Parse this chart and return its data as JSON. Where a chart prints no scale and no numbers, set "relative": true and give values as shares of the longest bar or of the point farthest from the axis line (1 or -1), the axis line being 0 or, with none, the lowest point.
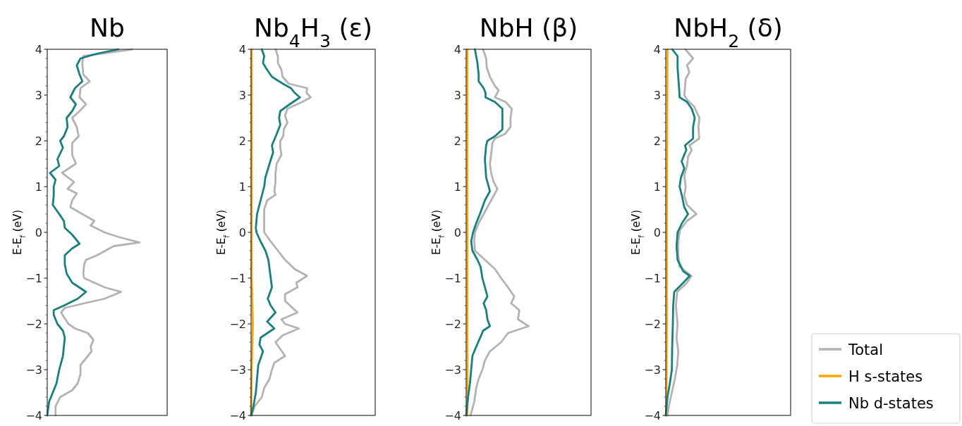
{
  "chart_data": [
    {
      "type": "line",
      "title": "Nb",
      "ylabel": "E-E$_{f}$ (eV)",
      "orientation": "horizontal",
      "relative": true,
      "tick_labels": "y",
      "ylim": [
        -4,
        4
      ],
      "yticks": [
        -4,
        -3,
        -2,
        -1,
        0,
        1,
        2,
        3,
        4,
        {
          "value": -3.8,
          "label": null
        },
        {
          "value": -3.6,
          "label": null
        },
        {
          "value": -3.4,
          "label": null
        },
        {
          "value": -3.2,
          "label": null
        },
        {
          "value": -2.8,
          "label": null
        },
        {
          "value": -2.6,
          "label": null
        },
        {
          "value": -2.4,
          "label": null
        },
        {
          "value": -2.2,
          "label": null
        },
        {
          "value": -1.8,
          "label": null
        },
        {
          "value": -1.6,
          "label": null
        },
        {
          "value": -1.4,
          "label": null
        },
        {
          "value": -1.2,
          "label": null
        },
        {
          "value": -0.8,
          "label": null
        },
        {
          "value": -0.6,
          "label": null
        },
        {
          "value": -0.4,
          "label": null
        },
        {
          "value": -0.2,
          "label": null
        },
        {
          "value": 0.2,
          "label": null
        },
        {
          "value": 0.4,
          "label": null
        },
        {
          "value": 0.6,
          "label": null
        },
        {
          "value": 0.8,
          "label": null
        },
        {
          "value": 1.2,
          "label": null
        },
        {
          "value": 1.4,
          "label": null
        },
        {
          "value": 1.6,
          "label": null
        },
        {
          "value": 1.8,
          "label": null
        },
        {
          "value": 2.2,
          "label": null
        },
        {
          "value": 2.4,
          "label": null
        },
        {
          "value": 2.6,
          "label": null
        },
        {
          "value": 2.8,
          "label": null
        },
        {
          "value": 3.2,
          "label": null
        },
        {
          "value": 3.4,
          "label": null
        },
        {
          "value": 3.6,
          "label": null
        },
        {
          "value": 3.8,
          "label": null
        }
      ],
      "series": [
        {
          "color": "#b3b3b3",
          "x": [
            4,
            3.85,
            3.7,
            3.45,
            3.3,
            3.15,
            2.95,
            2.8,
            2.65,
            2.5,
            2.3,
            2.1,
            1.95,
            1.7,
            1.5,
            1.3,
            1.1,
            0.95,
            0.85,
            0.7,
            0.55,
            0.4,
            0.25,
            0.15,
            0,
            -0.1,
            -0.22,
            -0.3,
            -0.5,
            -0.6,
            -0.7,
            -0.9,
            -1.0,
            -1.2,
            -1.3,
            -1.45,
            -1.55,
            -1.65,
            -1.75,
            -1.85,
            -2.0,
            -2.1,
            -2.2,
            -2.35,
            -2.5,
            -2.6,
            -2.8,
            -2.9,
            -3.1,
            -3.3,
            -3.45,
            -3.6,
            -3.8,
            -4
          ],
          "values": [
            0.92,
            0.39,
            0.38,
            0.39,
            0.46,
            0.36,
            0.35,
            0.42,
            0.35,
            0.27,
            0.32,
            0.34,
            0.27,
            0.27,
            0.31,
            0.16,
            0.29,
            0.22,
            0.32,
            0.27,
            0.25,
            0.38,
            0.51,
            0.47,
            0.62,
            0.77,
            1.0,
            0.72,
            0.54,
            0.42,
            0.4,
            0.39,
            0.4,
            0.62,
            0.8,
            0.62,
            0.4,
            0.19,
            0.15,
            0.18,
            0.23,
            0.3,
            0.44,
            0.5,
            0.47,
            0.48,
            0.4,
            0.36,
            0.36,
            0.33,
            0.27,
            0.14,
            0.09,
            0.09
          ]
        },
        {
          "color": "#1b7f7f",
          "x": [
            4,
            3.9,
            3.8,
            3.65,
            3.45,
            3.3,
            3.15,
            2.95,
            2.8,
            2.65,
            2.5,
            2.3,
            2.1,
            2.0,
            1.85,
            1.6,
            1.45,
            1.3,
            1.15,
            1.0,
            0.8,
            0.6,
            0.4,
            0.25,
            0.1,
            -0.05,
            -0.25,
            -0.35,
            -0.5,
            -0.7,
            -0.9,
            -1.1,
            -1.3,
            -1.45,
            -1.6,
            -1.7,
            -1.8,
            -2.0,
            -2.15,
            -2.3,
            -2.5,
            -2.7,
            -3.0,
            -3.3,
            -3.5,
            -3.7,
            -4
          ],
          "values": [
            0.77,
            0.53,
            0.36,
            0.32,
            0.35,
            0.38,
            0.3,
            0.25,
            0.31,
            0.27,
            0.21,
            0.22,
            0.18,
            0.14,
            0.17,
            0.11,
            0.13,
            0.03,
            0.09,
            0.07,
            0.07,
            0.06,
            0.13,
            0.18,
            0.19,
            0.27,
            0.35,
            0.27,
            0.19,
            0.19,
            0.21,
            0.27,
            0.42,
            0.33,
            0.18,
            0.07,
            0.07,
            0.11,
            0.17,
            0.19,
            0.18,
            0.17,
            0.13,
            0.1,
            0.06,
            0.02,
            0.0
          ]
        }
      ]
    },
    {
      "type": "line",
      "title": "Nb$_{4}$H$_{3}$ (ε)",
      "ylabel": "E-E$_{f}$ (eV)",
      "orientation": "horizontal",
      "relative": true,
      "tick_labels": "y",
      "ylim": [
        -4,
        4
      ],
      "yticks": [
        -4,
        -3,
        -2,
        -1,
        0,
        1,
        2,
        3,
        4,
        {
          "value": -3.8,
          "label": null
        },
        {
          "value": -3.6,
          "label": null
        },
        {
          "value": -3.4,
          "label": null
        },
        {
          "value": -3.2,
          "label": null
        },
        {
          "value": -2.8,
          "label": null
        },
        {
          "value": -2.6,
          "label": null
        },
        {
          "value": -2.4,
          "label": null
        },
        {
          "value": -2.2,
          "label": null
        },
        {
          "value": -1.8,
          "label": null
        },
        {
          "value": -1.6,
          "label": null
        },
        {
          "value": -1.4,
          "label": null
        },
        {
          "value": -1.2,
          "label": null
        },
        {
          "value": -0.8,
          "label": null
        },
        {
          "value": -0.6,
          "label": null
        },
        {
          "value": -0.4,
          "label": null
        },
        {
          "value": -0.2,
          "label": null
        },
        {
          "value": 0.2,
          "label": null
        },
        {
          "value": 0.4,
          "label": null
        },
        {
          "value": 0.6,
          "label": null
        },
        {
          "value": 0.8,
          "label": null
        },
        {
          "value": 1.2,
          "label": null
        },
        {
          "value": 1.4,
          "label": null
        },
        {
          "value": 1.6,
          "label": null
        },
        {
          "value": 1.8,
          "label": null
        },
        {
          "value": 2.2,
          "label": null
        },
        {
          "value": 2.4,
          "label": null
        },
        {
          "value": 2.6,
          "label": null
        },
        {
          "value": 2.8,
          "label": null
        },
        {
          "value": 3.2,
          "label": null
        },
        {
          "value": 3.4,
          "label": null
        },
        {
          "value": 3.6,
          "label": null
        },
        {
          "value": 3.8,
          "label": null
        }
      ],
      "series": [
        {
          "color": "#b3b3b3",
          "x": [
            4,
            3.85,
            3.7,
            3.55,
            3.4,
            3.25,
            3.15,
            3.05,
            2.95,
            2.85,
            2.7,
            2.55,
            2.4,
            2.25,
            2.1,
            2.0,
            1.85,
            1.7,
            1.5,
            1.3,
            1.1,
            0.9,
            0.82,
            0.7,
            0.5,
            0.2,
            0,
            -0.2,
            -0.4,
            -0.6,
            -0.8,
            -0.95,
            -1.1,
            -1.2,
            -1.35,
            -1.5,
            -1.75,
            -1.9,
            -2.0,
            -2.1,
            -2.25,
            -2.4,
            -2.55,
            -2.7,
            -2.85,
            -3.0,
            -3.2,
            -3.4,
            -3.6,
            -3.8,
            -4
          ],
          "values": [
            0.41,
            0.45,
            0.45,
            0.51,
            0.53,
            0.63,
            0.94,
            0.93,
            1.0,
            0.86,
            0.61,
            0.57,
            0.61,
            0.55,
            0.54,
            0.49,
            0.49,
            0.51,
            0.43,
            0.41,
            0.41,
            0.39,
            0.41,
            0.27,
            0.22,
            0.22,
            0.22,
            0.33,
            0.45,
            0.57,
            0.73,
            0.94,
            0.76,
            0.78,
            0.57,
            0.57,
            0.78,
            0.51,
            0.57,
            0.8,
            0.53,
            0.41,
            0.49,
            0.57,
            0.39,
            0.35,
            0.31,
            0.22,
            0.18,
            0.06,
            0.01
          ]
        },
        {
          "color": "#ffa500",
          "x": [
            4,
            3,
            2,
            1,
            0,
            -1,
            -2,
            -2.5,
            -3,
            -4
          ],
          "values": [
            0.01,
            0.01,
            0.01,
            0.01,
            0.01,
            0.01,
            0.03,
            0.02,
            0.01,
            0.0
          ]
        },
        {
          "color": "#1b7f7f",
          "x": [
            4,
            3.85,
            3.7,
            3.55,
            3.4,
            3.25,
            3.15,
            3.05,
            2.95,
            2.8,
            2.65,
            2.5,
            2.35,
            2.15,
            1.9,
            1.75,
            1.5,
            1.2,
            1.0,
            0.8,
            0.6,
            0.4,
            0.1,
            0,
            -0.2,
            -0.4,
            -0.6,
            -0.8,
            -1.0,
            -1.2,
            -1.45,
            -1.6,
            -1.75,
            -1.95,
            -2.1,
            -2.3,
            -2.45,
            -2.6,
            -2.75,
            -2.9,
            -3.2,
            -3.5,
            -3.8,
            -4
          ],
          "values": [
            0.18,
            0.22,
            0.2,
            0.27,
            0.35,
            0.53,
            0.67,
            0.73,
            0.82,
            0.65,
            0.49,
            0.47,
            0.49,
            0.43,
            0.35,
            0.37,
            0.31,
            0.24,
            0.22,
            0.18,
            0.14,
            0.1,
            0.08,
            0.09,
            0.16,
            0.24,
            0.29,
            0.31,
            0.33,
            0.35,
            0.28,
            0.33,
            0.41,
            0.27,
            0.39,
            0.16,
            0.14,
            0.2,
            0.16,
            0.12,
            0.1,
            0.08,
            0.04,
            0.0
          ]
        }
      ]
    },
    {
      "type": "line",
      "title": "NbH (β)",
      "ylabel": "E-E$_{f}$ (eV)",
      "orientation": "horizontal",
      "relative": true,
      "tick_labels": "y",
      "ylim": [
        -4,
        4
      ],
      "yticks": [
        -4,
        -3,
        -2,
        -1,
        0,
        1,
        2,
        3,
        4,
        {
          "value": -3.8,
          "label": null
        },
        {
          "value": -3.6,
          "label": null
        },
        {
          "value": -3.4,
          "label": null
        },
        {
          "value": -3.2,
          "label": null
        },
        {
          "value": -2.8,
          "label": null
        },
        {
          "value": -2.6,
          "label": null
        },
        {
          "value": -2.4,
          "label": null
        },
        {
          "value": -2.2,
          "label": null
        },
        {
          "value": -1.8,
          "label": null
        },
        {
          "value": -1.6,
          "label": null
        },
        {
          "value": -1.4,
          "label": null
        },
        {
          "value": -1.2,
          "label": null
        },
        {
          "value": -0.8,
          "label": null
        },
        {
          "value": -0.6,
          "label": null
        },
        {
          "value": -0.4,
          "label": null
        },
        {
          "value": -0.2,
          "label": null
        },
        {
          "value": 0.2,
          "label": null
        },
        {
          "value": 0.4,
          "label": null
        },
        {
          "value": 0.6,
          "label": null
        },
        {
          "value": 0.8,
          "label": null
        },
        {
          "value": 1.2,
          "label": null
        },
        {
          "value": 1.4,
          "label": null
        },
        {
          "value": 1.6,
          "label": null
        },
        {
          "value": 1.8,
          "label": null
        },
        {
          "value": 2.2,
          "label": null
        },
        {
          "value": 2.4,
          "label": null
        },
        {
          "value": 2.6,
          "label": null
        },
        {
          "value": 2.8,
          "label": null
        },
        {
          "value": 3.2,
          "label": null
        },
        {
          "value": 3.4,
          "label": null
        },
        {
          "value": 3.6,
          "label": null
        },
        {
          "value": 3.8,
          "label": null
        }
      ],
      "series": [
        {
          "color": "#b3b3b3",
          "x": [
            4,
            3.8,
            3.6,
            3.4,
            3.2,
            3.1,
            2.95,
            2.85,
            2.7,
            2.5,
            2.3,
            2.15,
            2.05,
            1.95,
            1.7,
            1.5,
            1.3,
            1.1,
            0.95,
            0.8,
            0.6,
            0.4,
            0.2,
            0,
            -0.2,
            -0.4,
            -0.55,
            -0.8,
            -1.0,
            -1.2,
            -1.4,
            -1.55,
            -1.7,
            -1.9,
            -2.05,
            -2.2,
            -2.4,
            -2.6,
            -2.8,
            -3.0,
            -3.2,
            -3.4,
            -3.7,
            -4
          ],
          "values": [
            0.27,
            0.32,
            0.33,
            0.38,
            0.46,
            0.52,
            0.46,
            0.63,
            0.73,
            0.71,
            0.71,
            0.62,
            0.46,
            0.42,
            0.4,
            0.38,
            0.4,
            0.44,
            0.5,
            0.44,
            0.36,
            0.28,
            0.2,
            0.14,
            0.13,
            0.14,
            0.26,
            0.46,
            0.56,
            0.67,
            0.77,
            0.72,
            0.85,
            0.83,
            1.0,
            0.67,
            0.56,
            0.38,
            0.3,
            0.26,
            0.2,
            0.16,
            0.13,
            0.07
          ]
        },
        {
          "color": "#ffa500",
          "x": [
            4,
            2,
            0,
            -2,
            -4
          ],
          "values": [
            0.02,
            0.02,
            0.02,
            0.02,
            0.02
          ]
        },
        {
          "color": "#1b7f7f",
          "x": [
            4,
            3.7,
            3.45,
            3.3,
            3.15,
            3.05,
            2.95,
            2.85,
            2.7,
            2.5,
            2.25,
            2.1,
            2.0,
            1.9,
            1.6,
            1.2,
            1.0,
            0.9,
            0.7,
            0.4,
            0.2,
            0,
            -0.2,
            -0.4,
            -0.6,
            -0.75,
            -1.0,
            -1.2,
            -1.4,
            -1.55,
            -1.7,
            -1.9,
            -2.05,
            -2.15,
            -2.25,
            -2.5,
            -2.7,
            -3.0,
            -3.3,
            -3.6,
            -4
          ],
          "values": [
            0.14,
            0.18,
            0.2,
            0.2,
            0.28,
            0.31,
            0.31,
            0.46,
            0.58,
            0.58,
            0.58,
            0.46,
            0.34,
            0.32,
            0.3,
            0.32,
            0.36,
            0.38,
            0.3,
            0.22,
            0.16,
            0.11,
            0.08,
            0.1,
            0.18,
            0.23,
            0.26,
            0.3,
            0.34,
            0.28,
            0.32,
            0.34,
            0.38,
            0.27,
            0.24,
            0.16,
            0.1,
            0.08,
            0.06,
            0.03,
            0.0
          ]
        }
      ]
    },
    {
      "type": "line",
      "title": "NbH$_{2}$ (δ)",
      "ylabel": "E-E$_{f}$ (eV)",
      "orientation": "horizontal",
      "relative": true,
      "tick_labels": "y",
      "legend": "bottom right",
      "ylim": [
        -4,
        4
      ],
      "yticks": [
        -4,
        -3,
        -2,
        -1,
        0,
        1,
        2,
        3,
        4,
        {
          "value": -3.8,
          "label": null
        },
        {
          "value": -3.6,
          "label": null
        },
        {
          "value": -3.4,
          "label": null
        },
        {
          "value": -3.2,
          "label": null
        },
        {
          "value": -2.8,
          "label": null
        },
        {
          "value": -2.6,
          "label": null
        },
        {
          "value": -2.4,
          "label": null
        },
        {
          "value": -2.2,
          "label": null
        },
        {
          "value": -1.8,
          "label": null
        },
        {
          "value": -1.6,
          "label": null
        },
        {
          "value": -1.4,
          "label": null
        },
        {
          "value": -1.2,
          "label": null
        },
        {
          "value": -0.8,
          "label": null
        },
        {
          "value": -0.6,
          "label": null
        },
        {
          "value": -0.4,
          "label": null
        },
        {
          "value": -0.2,
          "label": null
        },
        {
          "value": 0.2,
          "label": null
        },
        {
          "value": 0.4,
          "label": null
        },
        {
          "value": 0.6,
          "label": null
        },
        {
          "value": 0.8,
          "label": null
        },
        {
          "value": 1.2,
          "label": null
        },
        {
          "value": 1.4,
          "label": null
        },
        {
          "value": 1.6,
          "label": null
        },
        {
          "value": 1.8,
          "label": null
        },
        {
          "value": 2.2,
          "label": null
        },
        {
          "value": 2.4,
          "label": null
        },
        {
          "value": 2.6,
          "label": null
        },
        {
          "value": 2.8,
          "label": null
        },
        {
          "value": 3.2,
          "label": null
        },
        {
          "value": 3.4,
          "label": null
        },
        {
          "value": 3.6,
          "label": null
        },
        {
          "value": 3.8,
          "label": null
        }
      ],
      "series": [
        {
          "name": "Total",
          "color": "#b3b3b3",
          "x": [
            4,
            3.8,
            3.65,
            3.5,
            3.35,
            3.0,
            2.9,
            2.75,
            2.5,
            2.3,
            2.05,
            1.9,
            1.8,
            1.65,
            1.45,
            1.25,
            1.0,
            0.8,
            0.6,
            0.4,
            0.25,
            0.05,
            -0.2,
            -0.5,
            -0.75,
            -0.95,
            -1.1,
            -1.3,
            -1.6,
            -2.0,
            -2.3,
            -2.6,
            -2.9,
            -3.2,
            -3.5,
            -3.8,
            -4
          ],
          "values": [
            0.58,
            0.81,
            0.63,
            0.7,
            0.59,
            0.55,
            0.63,
            0.84,
            1.0,
            0.97,
            0.99,
            0.7,
            0.77,
            0.66,
            0.63,
            0.55,
            0.59,
            0.55,
            0.63,
            0.91,
            0.63,
            0.42,
            0.37,
            0.37,
            0.41,
            0.76,
            0.63,
            0.34,
            0.3,
            0.35,
            0.32,
            0.37,
            0.34,
            0.27,
            0.18,
            0.09,
            0.05
          ]
        },
        {
          "name": "H s-states",
          "color": "#ffa500",
          "x": [
            4,
            2,
            0,
            -2,
            -4
          ],
          "values": [
            0.05,
            0.04,
            0.03,
            0.03,
            0.02
          ]
        },
        {
          "name": "Nb d-states",
          "color": "#1b7f7f",
          "x": [
            4,
            3.85,
            3.6,
            3.4,
            3.1,
            2.95,
            2.85,
            2.7,
            2.5,
            2.3,
            2.05,
            1.9,
            1.8,
            1.7,
            1.55,
            1.4,
            1.2,
            1.0,
            0.8,
            0.55,
            0.4,
            0.2,
            0,
            -0.3,
            -0.6,
            -0.85,
            -0.95,
            -1.1,
            -1.3,
            -1.6,
            -2.0,
            -2.5,
            -3.0,
            -3.3,
            -3.6,
            -4
          ],
          "values": [
            0.19,
            0.35,
            0.35,
            0.37,
            0.4,
            0.41,
            0.63,
            0.77,
            0.86,
            0.81,
            0.81,
            0.57,
            0.61,
            0.55,
            0.47,
            0.55,
            0.45,
            0.41,
            0.48,
            0.55,
            0.66,
            0.48,
            0.35,
            0.32,
            0.35,
            0.52,
            0.71,
            0.52,
            0.25,
            0.22,
            0.21,
            0.19,
            0.18,
            0.12,
            0.05,
            0.0
          ]
        }
      ]
    }
  ]
}
